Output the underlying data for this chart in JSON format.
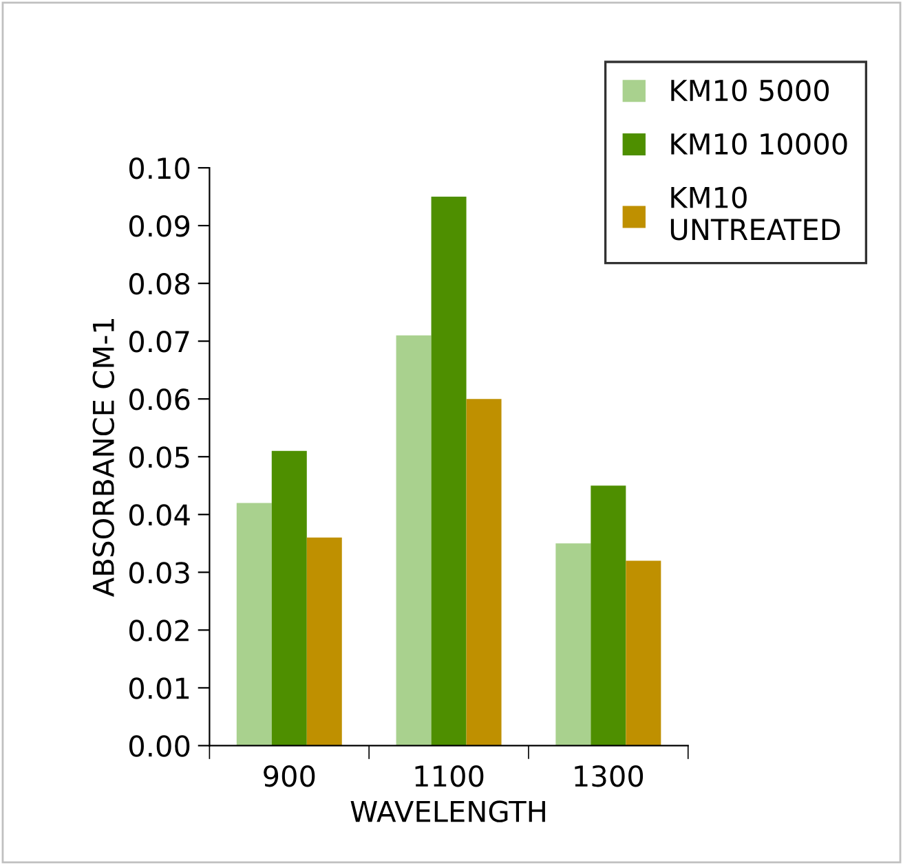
{
  "chart_data": {
    "type": "bar",
    "xlabel": "WAVELENGTH",
    "ylabel": "ABSORBANCE CM-1",
    "categories": [
      "900",
      "1100",
      "1300"
    ],
    "series": [
      {
        "name": "KM10 5000",
        "color": "#a9d18e",
        "values": [
          0.042,
          0.071,
          0.035
        ]
      },
      {
        "name": "KM10 10000",
        "color": "#4e8f00",
        "values": [
          0.051,
          0.095,
          0.045
        ]
      },
      {
        "name": "KM10\nUNTREATED",
        "color": "#bf9000",
        "values": [
          0.036,
          0.06,
          0.032
        ]
      }
    ],
    "ylim": [
      0,
      0.1
    ],
    "yticks": [
      {
        "value": 0,
        "label": "0.00"
      },
      {
        "value": 0.01,
        "label": "0.01"
      },
      {
        "value": 0.02,
        "label": "0.02"
      },
      {
        "value": 0.03,
        "label": "0.03"
      },
      {
        "value": 0.04,
        "label": "0.04"
      },
      {
        "value": 0.05,
        "label": "0.05"
      },
      {
        "value": 0.06,
        "label": "0.06"
      },
      {
        "value": 0.07,
        "label": "0.07"
      },
      {
        "value": 0.08,
        "label": "0.08"
      },
      {
        "value": 0.09,
        "label": "0.09"
      },
      {
        "value": 0.1,
        "label": "0.10"
      }
    ],
    "grid": false,
    "legend": "top right"
  }
}
